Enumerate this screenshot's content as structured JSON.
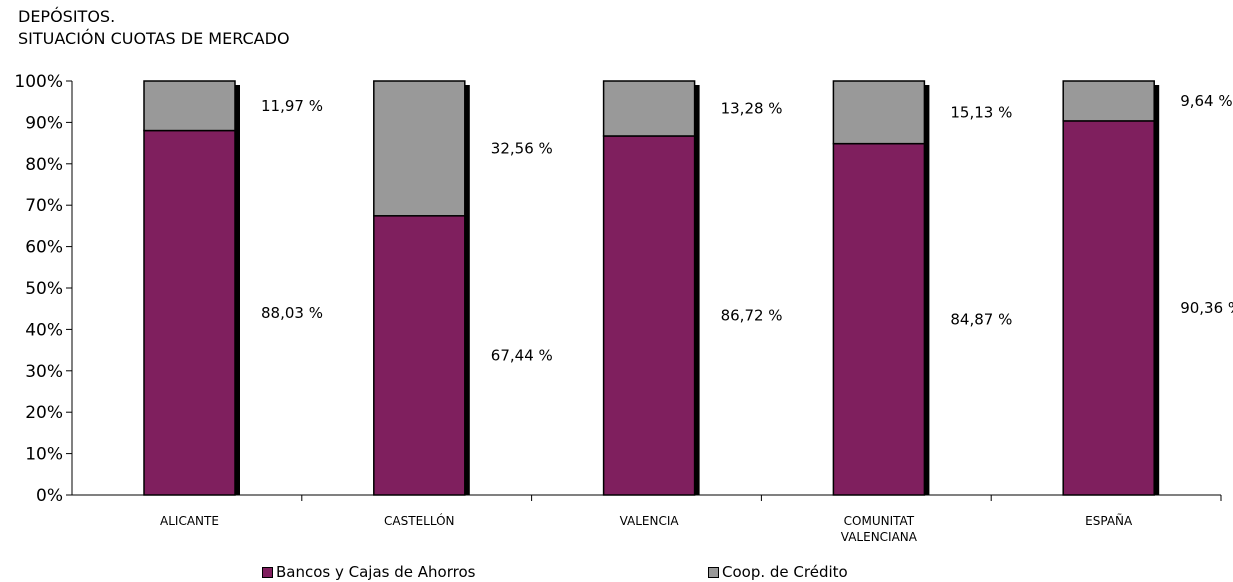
{
  "chart_data": {
    "type": "bar",
    "stacked": true,
    "title": "DEPÓSITOS.",
    "subtitle": "SITUACIÓN CUOTAS DE MERCADO",
    "categories": [
      "ALICANTE",
      "CASTELLÓN",
      "VALENCIA",
      "COMUNITAT VALENCIANA",
      "ESPAÑA"
    ],
    "series": [
      {
        "name": "Bancos y Cajas de Ahorros",
        "color": "#7f1f5e",
        "values": [
          88.03,
          67.44,
          86.72,
          84.87,
          90.36
        ],
        "labels": [
          "88,03 %",
          "67,44 %",
          "86,72 %",
          "84,87 %",
          "90,36 %"
        ]
      },
      {
        "name": "Coop. de Crédito",
        "color": "#999999",
        "values": [
          11.97,
          32.56,
          13.28,
          15.13,
          9.64
        ],
        "labels": [
          "11,97 %",
          "32,56 %",
          "13,28 %",
          "15,13 %",
          "9,64 %"
        ]
      }
    ],
    "yticks": [
      "0%",
      "10%",
      "20%",
      "30%",
      "40%",
      "50%",
      "60%",
      "70%",
      "80%",
      "90%",
      "100%"
    ],
    "ylim": [
      0,
      100
    ],
    "grid": false,
    "legend_position": "bottom"
  }
}
